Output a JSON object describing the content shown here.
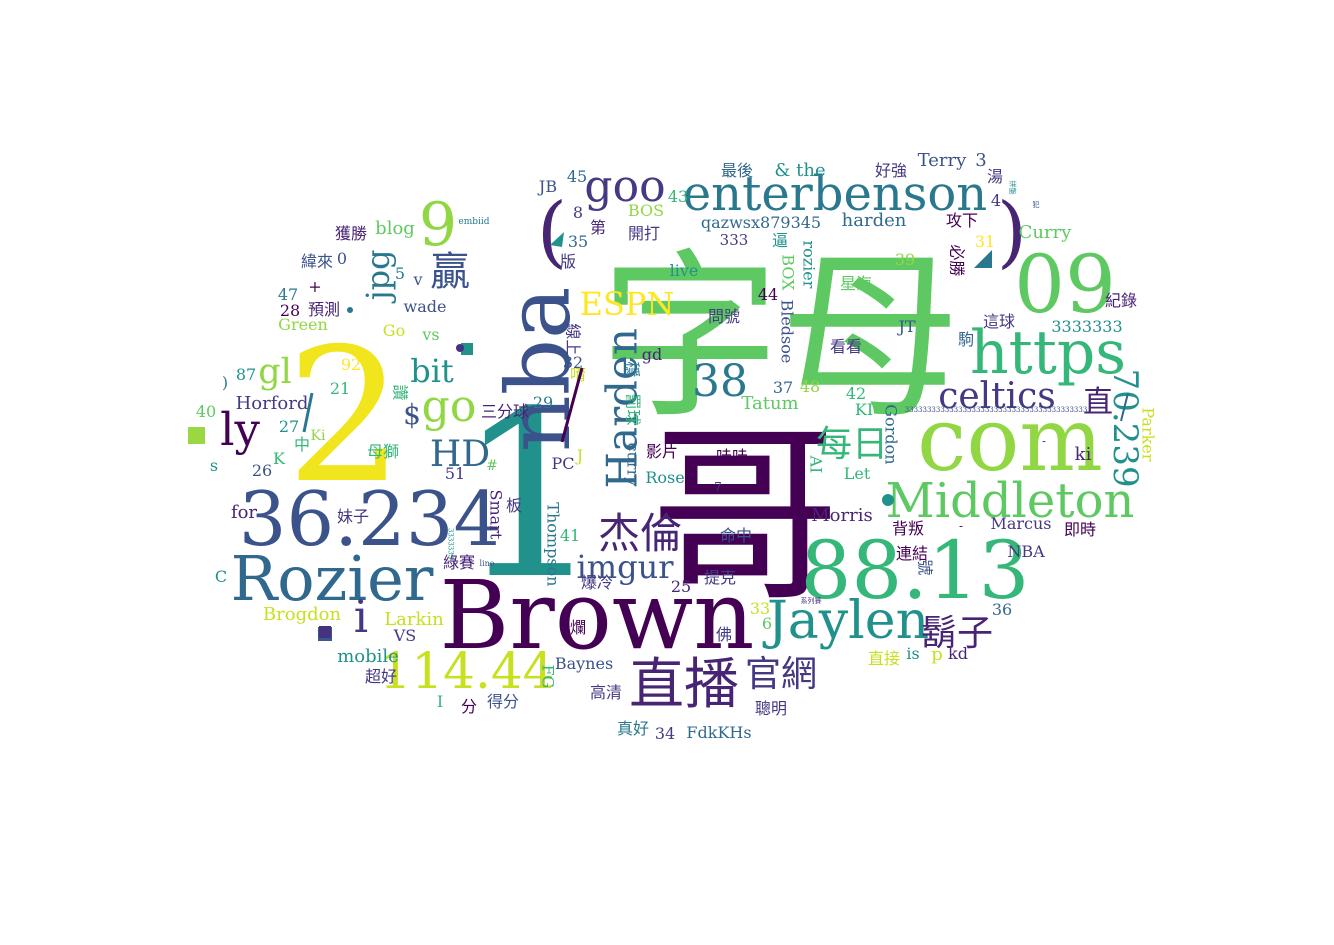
{
  "words": [
    {
      "text": "字母",
      "color": "#5ec962"
    },
    {
      "text": "哥",
      "color": "#440154"
    },
    {
      "text": "1",
      "color": "#21918c"
    },
    {
      "text": "2",
      "color": "#f1e51d"
    },
    {
      "text": "Brown",
      "color": "#440154"
    },
    {
      "text": "com",
      "color": "#90d743"
    },
    {
      "text": "nba",
      "color": "#3b528b"
    },
    {
      "text": "88.13",
      "color": "#35b779"
    },
    {
      "text": "36.234",
      "color": "#3b528b"
    },
    {
      "text": "Rozier",
      "color": "#31688e"
    },
    {
      "text": "09",
      "color": "#5ec962"
    },
    {
      "text": "https",
      "color": "#35b779"
    },
    {
      "text": "Middleton",
      "color": "#5ec962"
    },
    {
      "text": "enterbenson",
      "color": "#2a788e"
    },
    {
      "text": "Jaylen",
      "color": "#21918c"
    },
    {
      "text": "直播",
      "color": "#482475"
    },
    {
      "text": "114.44",
      "color": "#c8e020"
    },
    {
      "text": "(",
      "color": "#482475"
    },
    {
      "text": ")",
      "color": "#482475"
    },
    {
      "text": "goo",
      "color": "#443983"
    },
    {
      "text": "Harden",
      "color": "#31688e"
    },
    {
      "text": "杰倫",
      "color": "#482475"
    },
    {
      "text": "celtics",
      "color": "#443983"
    },
    {
      "text": "9",
      "color": "#90d743"
    },
    {
      "text": "38",
      "color": "#2a788e"
    },
    {
      "text": "go",
      "color": "#90d743"
    },
    {
      "text": "HD",
      "color": "#31688e"
    },
    {
      "text": "70.239",
      "color": "#21918c"
    },
    {
      "text": "每日",
      "color": "#35b779"
    },
    {
      "text": "鬍子",
      "color": "#482475"
    },
    {
      "text": "官網",
      "color": "#443983"
    },
    {
      "text": "imgur",
      "color": "#3b528b"
    },
    {
      "text": "ESPN",
      "color": "#fde725"
    },
    {
      "text": "jpg",
      "color": "#2a788e"
    },
    {
      "text": "贏",
      "color": "#3b528b"
    },
    {
      "text": "ly",
      "color": "#440154"
    },
    {
      "text": "bit",
      "color": "#21918c"
    },
    {
      "text": "gl",
      "color": "#90d743"
    },
    {
      "text": "直",
      "color": "#482475"
    },
    {
      "text": "i",
      "color": "#443983"
    },
    {
      "text": "$",
      "color": "#3b528b"
    },
    {
      "text": "Terry",
      "color": "#3b528b"
    },
    {
      "text": "3",
      "color": "#3b528b"
    },
    {
      "text": "& the",
      "color": "#21918c"
    },
    {
      "text": "好強",
      "color": "#443983"
    },
    {
      "text": "最後",
      "color": "#31688e"
    },
    {
      "text": "湯",
      "color": "#443983"
    },
    {
      "text": "45",
      "color": "#31688e"
    },
    {
      "text": "JB",
      "color": "#3b528b"
    },
    {
      "text": "43",
      "color": "#35b779"
    },
    {
      "text": "BOS",
      "color": "#90d743"
    },
    {
      "text": "8",
      "color": "#443983"
    },
    {
      "text": "第",
      "color": "#482475"
    },
    {
      "text": "開打",
      "color": "#443983"
    },
    {
      "text": "qazwsx879345",
      "color": "#31688e"
    },
    {
      "text": "harden",
      "color": "#31688e"
    },
    {
      "text": "攻下",
      "color": "#440154"
    },
    {
      "text": "4",
      "color": "#443983"
    },
    {
      "text": "Curry",
      "color": "#5ec962"
    },
    {
      "text": "333",
      "color": "#443983"
    },
    {
      "text": "逼",
      "color": "#21918c"
    },
    {
      "text": "rozier",
      "color": "#21918c"
    },
    {
      "text": "獲勝",
      "color": "#482475"
    },
    {
      "text": "blog",
      "color": "#5ec962"
    },
    {
      "text": "embiid",
      "color": "#2a788e"
    },
    {
      "text": "35",
      "color": "#31688e"
    },
    {
      "text": "版",
      "color": "#443983"
    },
    {
      "text": "必勝",
      "color": "#440154"
    },
    {
      "text": "31",
      "color": "#fde725"
    },
    {
      "text": "39",
      "color": "#90d743"
    },
    {
      "text": "星海",
      "color": "#5ec962"
    },
    {
      "text": "緯來",
      "color": "#3b528b"
    },
    {
      "text": "0",
      "color": "#3b528b"
    },
    {
      "text": "5",
      "color": "#2a788e"
    },
    {
      "text": "live",
      "color": "#21918c"
    },
    {
      "text": "BOX",
      "color": "#5ec962"
    },
    {
      "text": "44",
      "color": "#440154"
    },
    {
      "text": "紀錄",
      "color": "#482475"
    },
    {
      "text": "+",
      "color": "#440154"
    },
    {
      "text": "v",
      "color": "#3b528b"
    },
    {
      "text": "47",
      "color": "#2a788e"
    },
    {
      "text": "預測",
      "color": "#482475"
    },
    {
      "text": "wade",
      "color": "#3b528b"
    },
    {
      "text": "28",
      "color": "#440154"
    },
    {
      "text": "Green",
      "color": "#90d743"
    },
    {
      "text": "Go",
      "color": "#c8e020"
    },
    {
      "text": "問號",
      "color": "#443983"
    },
    {
      "text": "Bledsoe",
      "color": "#3b528b"
    },
    {
      "text": "這球",
      "color": "#443983"
    },
    {
      "text": "JT",
      "color": "#3b528b"
    },
    {
      "text": "3333333",
      "color": "#21918c"
    },
    {
      "text": "vs",
      "color": "#5ec962"
    },
    {
      "text": "線上",
      "color": "#443983"
    },
    {
      "text": "駒",
      "color": "#31688e"
    },
    {
      "text": "gd",
      "color": "#482475"
    },
    {
      "text": "看看",
      "color": "#443983"
    },
    {
      "text": "92",
      "color": "#fde725"
    },
    {
      "text": "32",
      "color": "#3b528b"
    },
    {
      "text": "穩",
      "color": "#2a788e"
    },
    {
      "text": "37",
      "color": "#31688e"
    },
    {
      "text": "48",
      "color": "#90d743"
    },
    {
      "text": ")",
      "color": "#2a788e"
    },
    {
      "text": "87",
      "color": "#21918c"
    },
    {
      "text": "21",
      "color": "#35b779"
    },
    {
      "text": "唷",
      "color": "#c8e020"
    },
    {
      "text": "讚",
      "color": "#35b779"
    },
    {
      "text": "三分球",
      "color": "#482475"
    },
    {
      "text": "29",
      "color": "#2a788e"
    },
    {
      "text": "42",
      "color": "#35b779"
    },
    {
      "text": "Horford",
      "color": "#443983"
    },
    {
      "text": "Tatum",
      "color": "#5ec962"
    },
    {
      "text": "40",
      "color": "#5ec962"
    },
    {
      "text": "27",
      "color": "#21918c"
    },
    {
      "text": "Ki",
      "color": "#90d743"
    },
    {
      "text": "罰球",
      "color": "#35b779"
    },
    {
      "text": "KI",
      "color": "#35b779"
    },
    {
      "text": "Gordon",
      "color": "#31688e"
    },
    {
      "text": "Parker",
      "color": "#c8e020"
    },
    {
      "text": "母獅",
      "color": "#35b779"
    },
    {
      "text": "中",
      "color": "#35b779"
    },
    {
      "text": "ki",
      "color": "#482475"
    },
    {
      "text": "影片",
      "color": "#440154"
    },
    {
      "text": "哇哇",
      "color": "#440154"
    },
    {
      "text": "AI",
      "color": "#35b779"
    },
    {
      "text": "26",
      "color": "#3b528b"
    },
    {
      "text": "K",
      "color": "#35b779"
    },
    {
      "text": "s",
      "color": "#21918c"
    },
    {
      "text": "51",
      "color": "#443983"
    },
    {
      "text": "#",
      "color": "#5ec962"
    },
    {
      "text": "PC",
      "color": "#443983"
    },
    {
      "text": "J",
      "color": "#c8e020"
    },
    {
      "text": "curry",
      "color": "#31688e"
    },
    {
      "text": "Rose",
      "color": "#21918c"
    },
    {
      "text": "Let",
      "color": "#35b779"
    },
    {
      "text": "板",
      "color": "#443983"
    },
    {
      "text": "7",
      "color": "#443983"
    },
    {
      "text": "for",
      "color": "#482475"
    },
    {
      "text": "妹子",
      "color": "#443983"
    },
    {
      "text": "Smart",
      "color": "#482475"
    },
    {
      "text": "Morris",
      "color": "#482475"
    },
    {
      "text": "背叛",
      "color": "#440154"
    },
    {
      "text": "Marcus",
      "color": "#443983"
    },
    {
      "text": "即時",
      "color": "#440154"
    },
    {
      "text": "41",
      "color": "#35b779"
    },
    {
      "text": "命中",
      "color": "#3b528b"
    },
    {
      "text": "連結",
      "color": "#440154"
    },
    {
      "text": "C",
      "color": "#21918c"
    },
    {
      "text": "綠賽",
      "color": "#482475"
    },
    {
      "text": "NBA",
      "color": "#443983"
    },
    {
      "text": "號",
      "color": "#3b528b"
    },
    {
      "text": "Thompson",
      "color": "#2a788e"
    },
    {
      "text": "line",
      "color": "#3b528b"
    },
    {
      "text": "爆冷",
      "color": "#443983"
    },
    {
      "text": "25",
      "color": "#482475"
    },
    {
      "text": "提克",
      "color": "#443983"
    },
    {
      "text": "Brogdon",
      "color": "#c8e020"
    },
    {
      "text": "Larkin",
      "color": "#c8e020"
    },
    {
      "text": "VS",
      "color": "#443983"
    },
    {
      "text": "爛",
      "color": "#440154"
    },
    {
      "text": "33",
      "color": "#c8e020"
    },
    {
      "text": "6",
      "color": "#5ec962"
    },
    {
      "text": "佛",
      "color": "#443983"
    },
    {
      "text": "36",
      "color": "#31688e"
    },
    {
      "text": "mobile",
      "color": "#21918c"
    },
    {
      "text": "Baynes",
      "color": "#3b528b"
    },
    {
      "text": "直接",
      "color": "#c8e020"
    },
    {
      "text": "is",
      "color": "#21918c"
    },
    {
      "text": "p",
      "color": "#c8e020"
    },
    {
      "text": "kd",
      "color": "#482475"
    },
    {
      "text": "超好",
      "color": "#443983"
    },
    {
      "text": "FG",
      "color": "#35b779"
    },
    {
      "text": "高清",
      "color": "#443983"
    },
    {
      "text": "聰明",
      "color": "#443983"
    },
    {
      "text": "I",
      "color": "#35b779"
    },
    {
      "text": "分",
      "color": "#440154"
    },
    {
      "text": "得分",
      "color": "#3b528b"
    },
    {
      "text": "真好",
      "color": "#2a788e"
    },
    {
      "text": "34",
      "color": "#443983"
    },
    {
      "text": "FdkKHs",
      "color": "#31688e"
    },
    {
      "text": "系列賽",
      "color": "#443983"
    },
    {
      "text": "犯",
      "color": "#3b528b"
    },
    {
      "text": "拼盤",
      "color": "#21918c"
    },
    {
      "text": "33333333333333333333333333333333333333333",
      "color": "#3b528b"
    },
    {
      "text": "3333333",
      "color": "#21918c"
    },
    {
      "text": "-",
      "color": "#443983"
    },
    {
      "text": "-",
      "color": "#440154"
    }
  ],
  "glyphs": [
    {
      "kind": "square",
      "color": "#9ad843"
    },
    {
      "kind": "square",
      "color": "#3a5a8c"
    },
    {
      "kind": "square",
      "color": "#21918c"
    },
    {
      "kind": "square",
      "color": "#46327e"
    },
    {
      "kind": "dot",
      "color": "#21918c"
    },
    {
      "kind": "dot",
      "color": "#2a788e"
    },
    {
      "kind": "dot",
      "color": "#46327e"
    },
    {
      "kind": "triangle",
      "color": "#2a788e"
    },
    {
      "kind": "triangle",
      "color": "#21918c"
    },
    {
      "kind": "slash",
      "color": "#2a788e"
    },
    {
      "kind": "slash",
      "color": "#440154"
    },
    {
      "kind": "slash",
      "color": "#31688e"
    }
  ]
}
